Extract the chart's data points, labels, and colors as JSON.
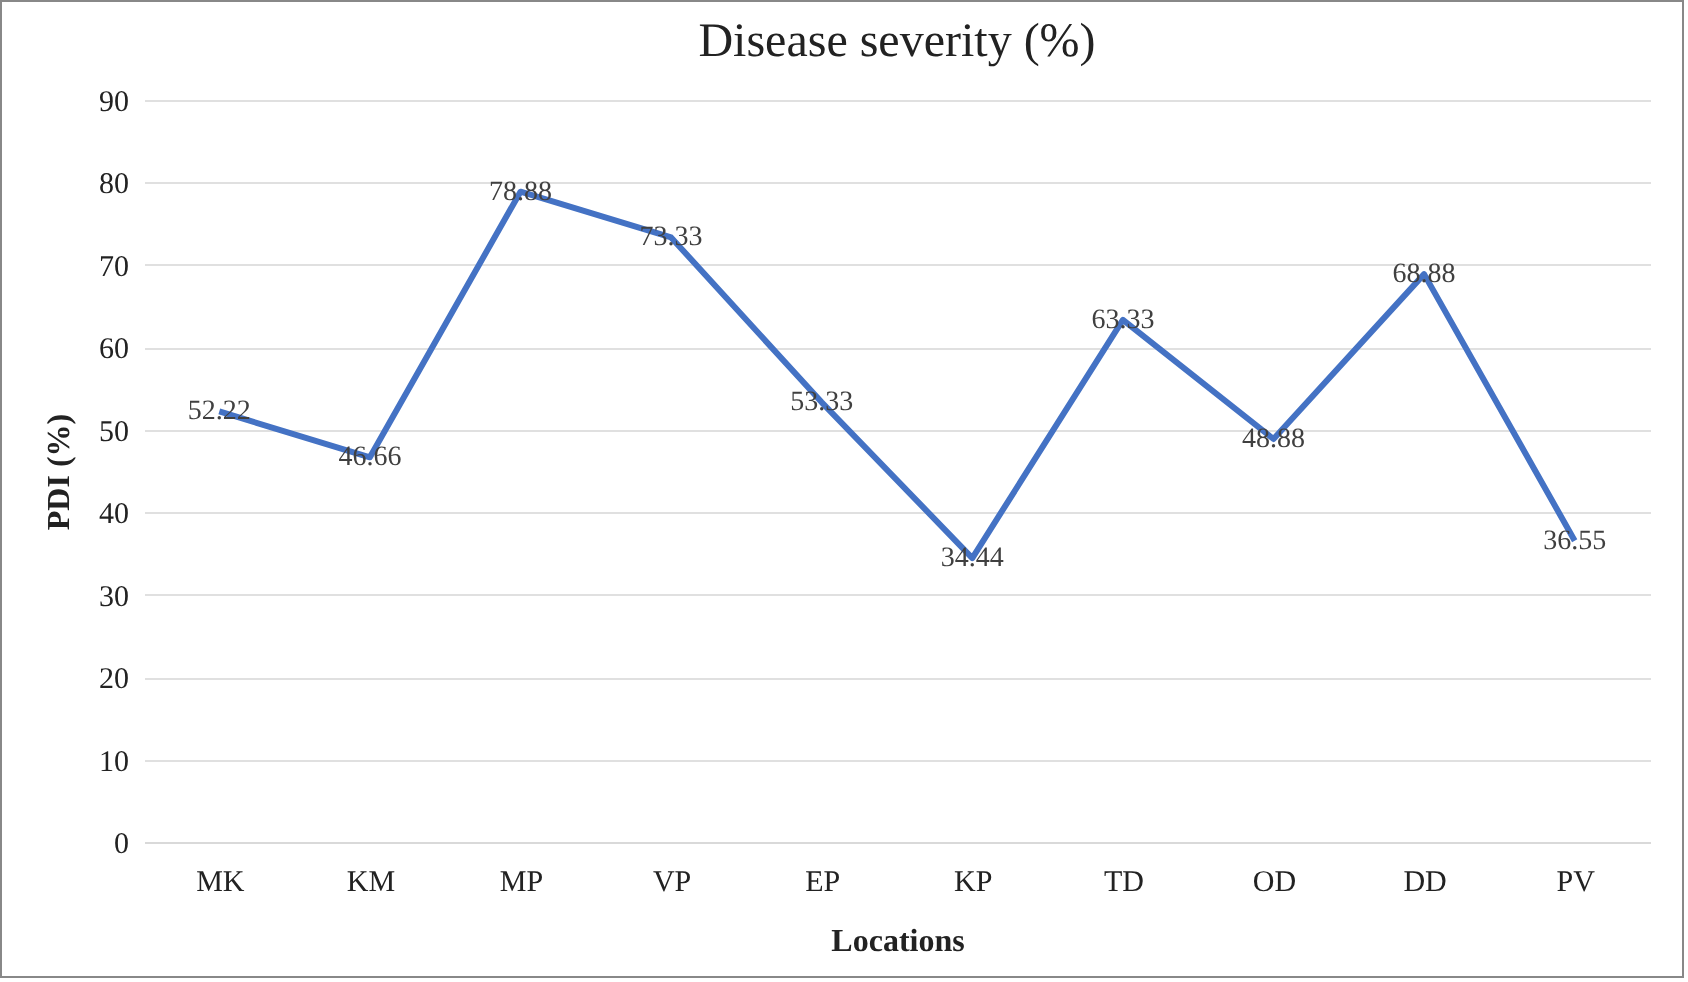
{
  "chart_data": {
    "type": "line",
    "title": "Disease severity (%)",
    "xlabel": "Locations",
    "ylabel": "PDI (%)",
    "categories": [
      "MK",
      "KM",
      "MP",
      "VP",
      "EP",
      "KP",
      "TD",
      "OD",
      "DD",
      "PV"
    ],
    "series": [
      {
        "color": "#4472c4",
        "values": [
          52.22,
          46.66,
          78.88,
          73.33,
          53.33,
          34.44,
          63.33,
          48.88,
          68.88,
          36.55
        ]
      }
    ],
    "ylim": [
      0,
      90
    ],
    "yticks": [
      0,
      10,
      20,
      30,
      40,
      50,
      60,
      70,
      80,
      90
    ],
    "grid": "y",
    "data_labels": true,
    "legend": false,
    "marker": "none",
    "line_style": "solid"
  }
}
